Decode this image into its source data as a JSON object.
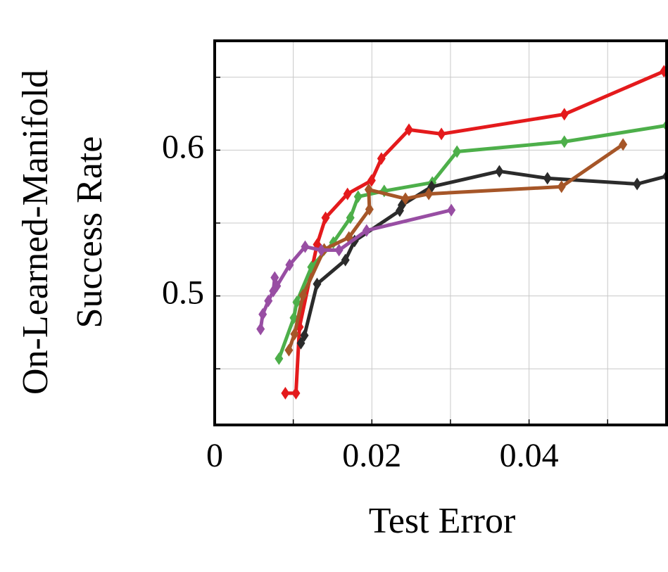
{
  "chart_data": {
    "type": "line",
    "xlabel": "Test Error",
    "ylabel": [
      "On-Learned-Manifold",
      "Success Rate"
    ],
    "xlim": [
      0,
      0.0575
    ],
    "ylim": [
      0.4115,
      0.675
    ],
    "xticks": [
      0,
      0.02,
      0.04
    ],
    "yticks": [
      0.5,
      0.6
    ],
    "xminor": [
      0.01,
      0.03,
      0.05
    ],
    "yminor": [
      0.45,
      0.55,
      0.65
    ],
    "grid": true,
    "marker": "diamond",
    "series": [
      {
        "color": "#e41a1c",
        "x": [
          0.00899,
          0.01034,
          0.01079,
          0.01303,
          0.01411,
          0.0169,
          0.01996,
          0.02121,
          0.02472,
          0.02885,
          0.04449,
          0.05717
        ],
        "values": [
          0.4333,
          0.4333,
          0.4787,
          0.5353,
          0.5536,
          0.57,
          0.5792,
          0.5942,
          0.614,
          0.6111,
          0.6246,
          0.6541
        ]
      },
      {
        "color": "#4daf4a",
        "x": [
          0.00818,
          0.01007,
          0.01043,
          0.01231,
          0.0151,
          0.01726,
          0.01825,
          0.02157,
          0.02769,
          0.03083,
          0.04449,
          0.0575
        ],
        "values": [
          0.457,
          0.485,
          0.4957,
          0.5198,
          0.5367,
          0.5536,
          0.5681,
          0.572,
          0.5778,
          0.599,
          0.6058,
          0.6169
        ]
      },
      {
        "color": "#2b2b2b",
        "x": [
          0.01097,
          0.01142,
          0.01303,
          0.01663,
          0.0178,
          0.02355,
          0.02382,
          0.0276,
          0.03622,
          0.04234,
          0.05375,
          0.0575
        ],
        "values": [
          0.4676,
          0.4729,
          0.5082,
          0.5246,
          0.5377,
          0.5585,
          0.5623,
          0.5749,
          0.5855,
          0.5807,
          0.5768,
          0.5821
        ]
      },
      {
        "color": "#a65628",
        "x": [
          0.00944,
          0.01016,
          0.01124,
          0.01393,
          0.01708,
          0.01969,
          0.0196,
          0.02427,
          0.02724,
          0.04413,
          0.05196
        ],
        "values": [
          0.4628,
          0.4739,
          0.5005,
          0.5319,
          0.5401,
          0.5594,
          0.5729,
          0.5667,
          0.57,
          0.5749,
          0.6039
        ]
      },
      {
        "color": "#984ea3",
        "x": [
          0.00584,
          0.00611,
          0.00683,
          0.00746,
          0.00764,
          0.00791,
          0.00953,
          0.01151,
          0.01357,
          0.01582,
          0.01933,
          0.03011
        ],
        "values": [
          0.4773,
          0.4874,
          0.4966,
          0.5034,
          0.5126,
          0.5068,
          0.5213,
          0.5338,
          0.5314,
          0.5314,
          0.5449,
          0.5589
        ]
      }
    ]
  }
}
